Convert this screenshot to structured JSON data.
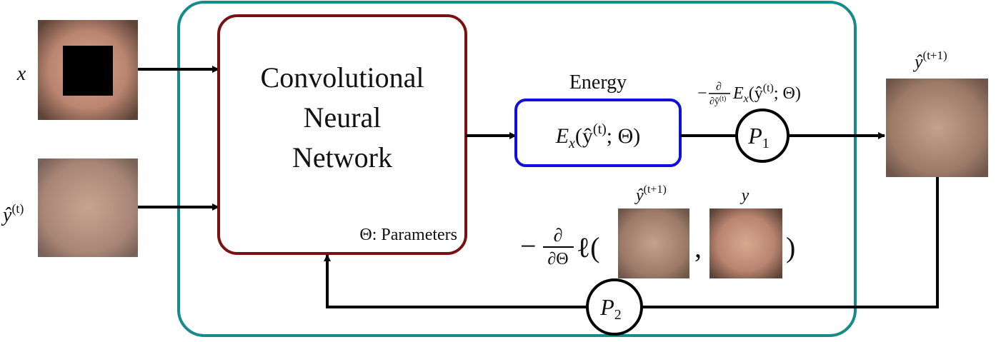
{
  "inputs": [
    {
      "label": "x"
    },
    {
      "label": {
        "base": "ŷ",
        "sup": "(t)"
      }
    }
  ],
  "cnn": {
    "lines": [
      "Convolutional",
      "Neural",
      "Network"
    ],
    "params": "Θ: Parameters"
  },
  "energy": {
    "title": "Energy",
    "formula": {
      "E": "E",
      "sub": "x",
      "open": "(ŷ",
      "sup": "(t)",
      "rest": "; Θ)"
    }
  },
  "gradient": {
    "minus": "−",
    "num": "∂",
    "den": "∂ŷ",
    "den_sup": "(t)",
    "E": "E",
    "sub": "x",
    "open": "(ŷ",
    "sup": "(t)",
    "rest": "; Θ)"
  },
  "nodes": [
    {
      "base": "P",
      "sub": "1"
    },
    {
      "base": "P",
      "sub": "2"
    }
  ],
  "output": {
    "base": "ŷ",
    "sup": "(t+1)"
  },
  "loss": {
    "minus": "−",
    "num": "∂",
    "den": "∂Θ",
    "func": "ℓ(",
    "comma": ",",
    "close": ")",
    "pred_label": {
      "base": "ŷ",
      "sup": "(t+1)"
    },
    "target_label": "y"
  }
}
